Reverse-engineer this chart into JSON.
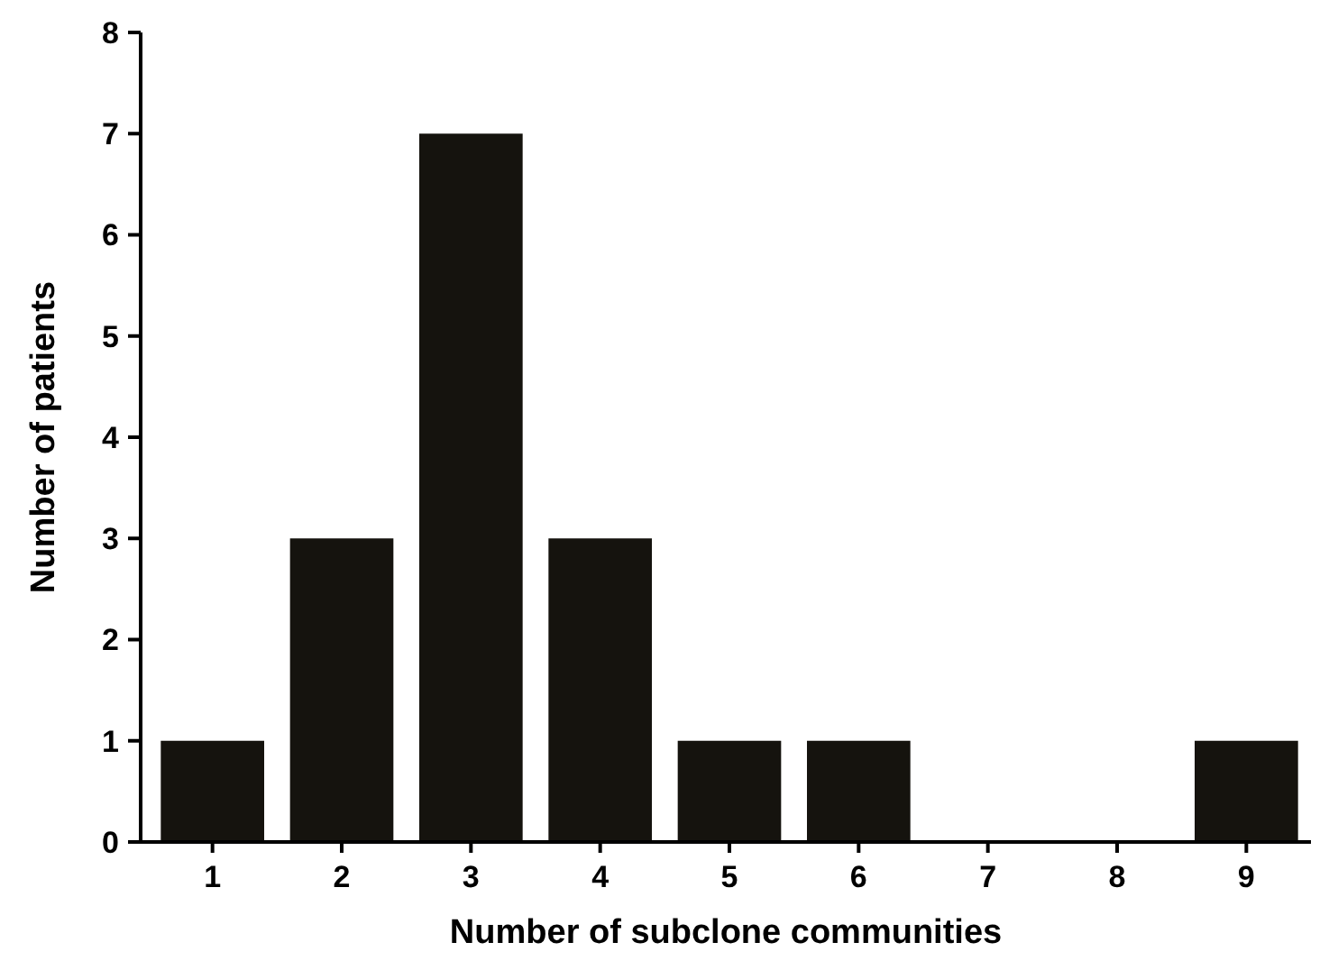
{
  "chart_data": {
    "type": "bar",
    "xlabel": "Number of subclone communities",
    "ylabel": "Number of patients",
    "categories": [
      "1",
      "2",
      "3",
      "4",
      "5",
      "6",
      "7",
      "8",
      "9"
    ],
    "values": [
      1,
      3,
      7,
      3,
      1,
      1,
      0,
      0,
      1
    ],
    "color": "#15130e",
    "ylim": [
      0,
      8
    ],
    "yticks": [
      0,
      1,
      2,
      3,
      4,
      5,
      6,
      7,
      8
    ],
    "grid": false
  }
}
